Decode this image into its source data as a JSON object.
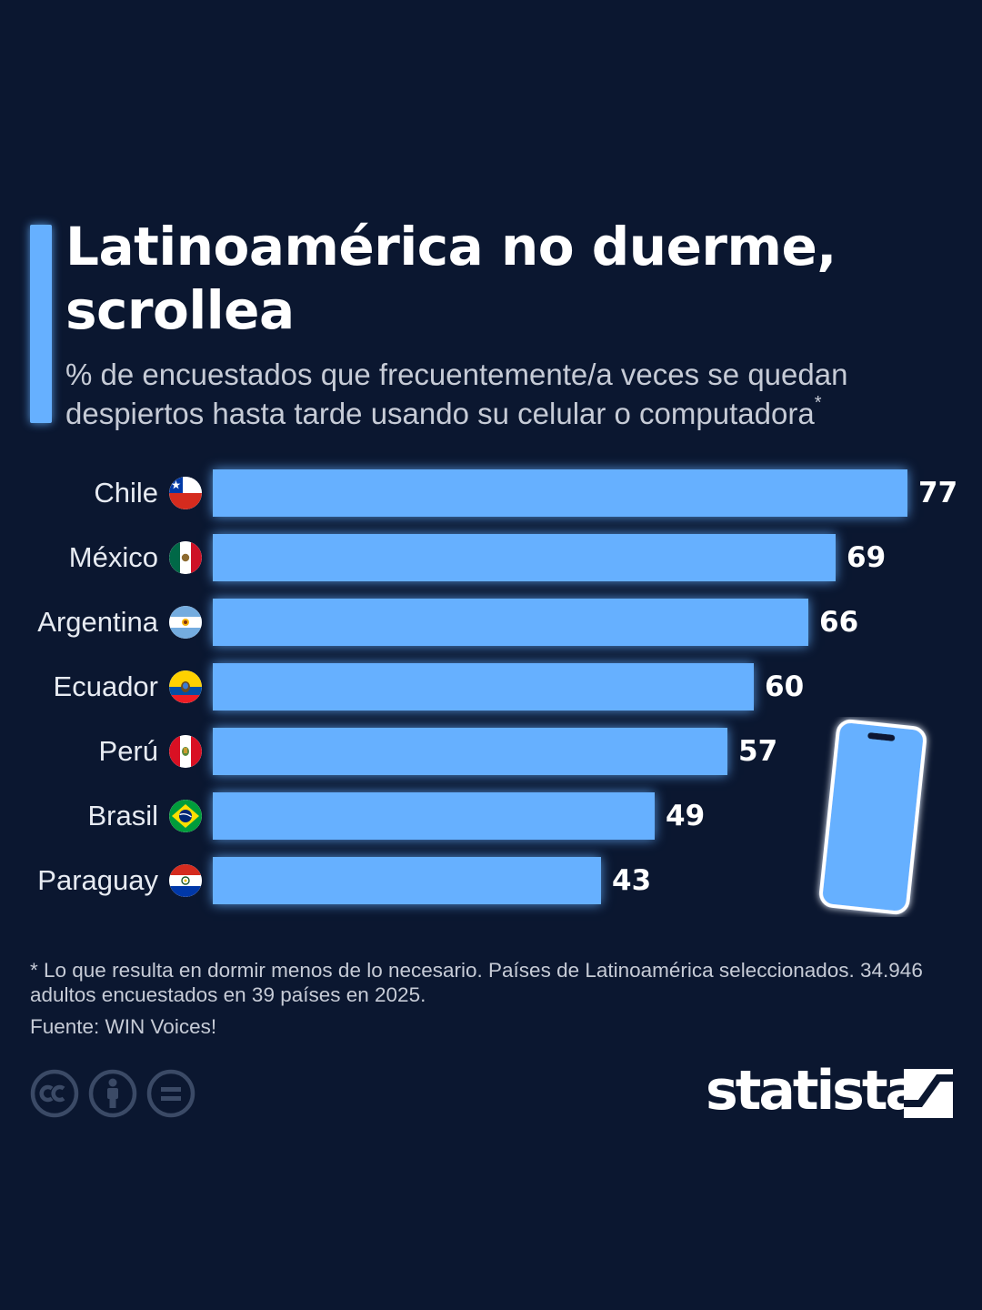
{
  "title": "Latinoamérica no duerme, scrollea",
  "subtitle": "% de encuestados que frecuentemente/a veces se quedan despiertos hasta tarde usando su celular o computadora",
  "subtitle_marker": "*",
  "footnote": "* Lo que resulta en dormir menos de lo necesario. Países de Latinoamérica seleccionados. 34.946 adultos encuestados en 39 países en 2025.",
  "source": "Fuente: WIN Voices!",
  "brand": "statista",
  "colors": {
    "background": "#0b1730",
    "bar": "#66b0ff",
    "text": "#ffffff",
    "muted": "#c6cbd6"
  },
  "icons": [
    "phone-icon",
    "cc-icon",
    "attribution-icon",
    "no-derivatives-icon",
    "statista-logo-icon"
  ],
  "chart_data": {
    "type": "bar",
    "orientation": "horizontal",
    "categories": [
      "Chile",
      "México",
      "Argentina",
      "Ecuador",
      "Perú",
      "Brasil",
      "Paraguay"
    ],
    "values": [
      77,
      69,
      66,
      60,
      57,
      49,
      43
    ],
    "flags": [
      "flag-chile-icon",
      "flag-mexico-icon",
      "flag-argentina-icon",
      "flag-ecuador-icon",
      "flag-peru-icon",
      "flag-brazil-icon",
      "flag-paraguay-icon"
    ],
    "xlim": [
      0,
      77
    ],
    "grid": false,
    "legend": "none"
  }
}
